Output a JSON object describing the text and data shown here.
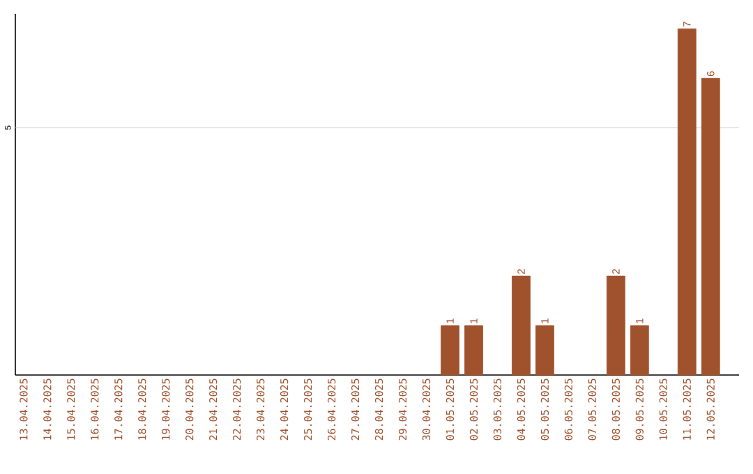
{
  "chart_data": {
    "type": "bar",
    "categories": [
      "13.04.2025",
      "14.04.2025",
      "15.04.2025",
      "16.04.2025",
      "17.04.2025",
      "18.04.2025",
      "19.04.2025",
      "20.04.2025",
      "21.04.2025",
      "22.04.2025",
      "23.04.2025",
      "24.04.2025",
      "25.04.2025",
      "26.04.2025",
      "27.04.2025",
      "28.04.2025",
      "29.04.2025",
      "30.04.2025",
      "01.05.2025",
      "02.05.2025",
      "03.05.2025",
      "04.05.2025",
      "05.05.2025",
      "06.05.2025",
      "07.05.2025",
      "08.05.2025",
      "09.05.2025",
      "10.05.2025",
      "11.05.2025",
      "12.05.2025"
    ],
    "values": [
      null,
      null,
      null,
      null,
      null,
      null,
      null,
      null,
      null,
      null,
      null,
      null,
      null,
      null,
      null,
      null,
      null,
      null,
      1,
      1,
      null,
      2,
      1,
      null,
      null,
      2,
      1,
      null,
      7,
      6
    ],
    "data_labels": true,
    "color": "#a0522d",
    "ylim": [
      0,
      7.3
    ],
    "ref_lines": [
      {
        "axis": "y",
        "value": 5,
        "label": "5",
        "color": "#cccccc"
      }
    ]
  }
}
